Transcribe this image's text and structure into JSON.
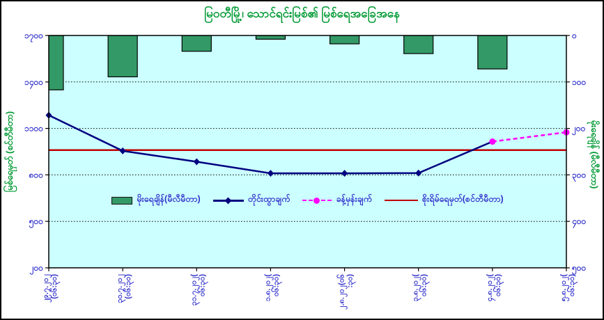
{
  "title": "မြဝတီမြို့၊ သောင်ရင်းမြစ်၏ မြစ်ရေအခြေအနေ",
  "colors": {
    "title_green": "#009933",
    "plot_background": "#CCFFFF",
    "bar_green": "#339966",
    "measured_navy": "#000080",
    "forecast_magenta": "#FF00FF",
    "danger_red": "#C00000",
    "tick_blue": "#3333CC"
  },
  "legend": {
    "items": [
      {
        "label": "မိုးရေချိန်(မီလီမီတာ)",
        "swatch": "green-bar"
      },
      {
        "label": "တိုင်းထွာချက်",
        "swatch": "navy-line-diamond"
      },
      {
        "label": "ခန့်မှန်းချက်",
        "swatch": "magenta-dashed-circle"
      },
      {
        "label": "စိုးရိမ်ရေမှတ်(စင်တီမီတာ)",
        "swatch": "red-line"
      }
    ]
  },
  "chart_data": {
    "type": "bar+line combo (rainfall bars hang from inverted secondary axis; water-level lines on primary axis)",
    "left_axis": {
      "title": "မြစ်ရေမှတ် (စင်တီမီတာ)",
      "min": 200,
      "max": 1700,
      "step": 300,
      "ticks": [
        {
          "label": "၁၇၀၀",
          "value": 1700
        },
        {
          "label": "၁၄၀၀",
          "value": 1400
        },
        {
          "label": "၁၁၀၀",
          "value": 1100
        },
        {
          "label": "၈၀၀",
          "value": 800
        },
        {
          "label": "၅၀၀",
          "value": 500
        },
        {
          "label": "၂၀၀",
          "value": 200
        }
      ]
    },
    "right_axis": {
      "title": "မိုးရေချိန် (မီလီမီတာ)",
      "min": 0,
      "max": 500,
      "step": 100,
      "inverted": true,
      "ticks": [
        {
          "label": "၀",
          "value": 0
        },
        {
          "label": "၁၀၀",
          "value": 100
        },
        {
          "label": "၂၀၀",
          "value": 200
        },
        {
          "label": "၃၀၀",
          "value": 300
        },
        {
          "label": "၄၀၀",
          "value": 400
        },
        {
          "label": "၅၀၀",
          "value": 500
        }
      ]
    },
    "categories": [
      {
        "line1": "၂၉.၇.၂၀၂",
        "line2": "(၀၆:၃၀)"
      },
      {
        "line1": "၃၀.၇.၂၀၂",
        "line2": "(၀၆:၃၀)"
      },
      {
        "line1": "၃၁.၇.၂၀၂(",
        "line2": "၀၆:၃၀)"
      },
      {
        "line1": "၁.၈.၂၀၂(",
        "line2": "၀၆:၃၀)"
      },
      {
        "line1": "၂.၈.၂၀၂(၀၆",
        "line2": ":၃၀)"
      },
      {
        "line1": "၃.၈.၂၀၂(",
        "line2": "၀၆:၃၀)"
      },
      {
        "line1": "၄.၈.၂၀၂(",
        "line2": "၀၆:၃၀)"
      },
      {
        "line1": "၅.၈.၂၀၂(",
        "line2": "၀၆:၃၀)"
      }
    ],
    "series": [
      {
        "name": "မိုးရေချိန်(မီလီမီတာ)",
        "type": "bar",
        "axis": "right",
        "color": "#339966",
        "values": [
          117,
          89,
          34,
          8,
          18,
          39,
          72,
          null
        ]
      },
      {
        "name": "တိုင်းထွာချက်",
        "type": "line",
        "marker": "diamond",
        "axis": "left",
        "color": "#000080",
        "values": [
          1185,
          955,
          885,
          810,
          810,
          812,
          null,
          null
        ]
      },
      {
        "name": "ခန့်မှန်းချက်",
        "type": "dashed-line",
        "marker": "circle",
        "axis": "left",
        "color": "#FF00FF",
        "values": [
          null,
          null,
          null,
          null,
          null,
          null,
          1015,
          1075
        ]
      },
      {
        "name": "စိုးရိမ်ရေမှတ်(စင်တီမီတာ)",
        "type": "constant-line",
        "axis": "left",
        "color": "#C00000",
        "value": 960
      }
    ]
  }
}
